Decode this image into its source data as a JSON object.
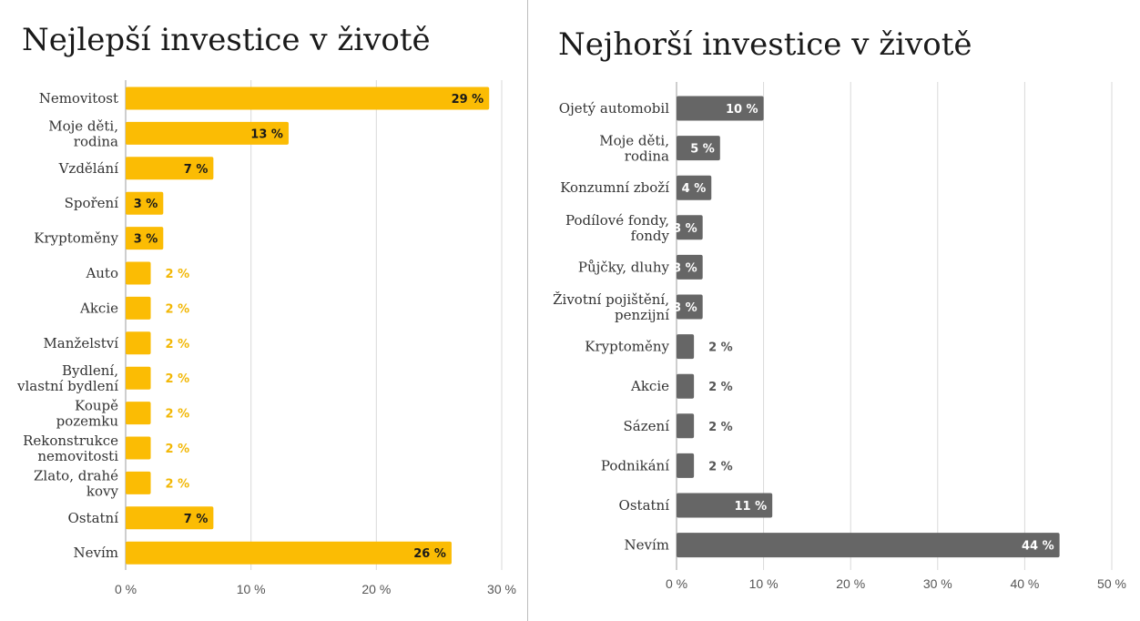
{
  "chart_data": [
    {
      "type": "bar",
      "orientation": "horizontal",
      "title": "Nejlepší investice v životě",
      "categories": [
        "Nemovitost",
        "Moje děti,\nrodina",
        "Vzdělání",
        "Spoření",
        "Kryptoměny",
        "Auto",
        "Akcie",
        "Manželství",
        "Bydlení,\nvlastní bydlení",
        "Koupě\npozemku",
        "Rekonstrukce\nnemovitosti",
        "Zlato, drahé\nkovy",
        "Ostatní",
        "Nevím"
      ],
      "values": [
        29,
        13,
        7,
        3,
        3,
        2,
        2,
        2,
        2,
        2,
        2,
        2,
        7,
        26
      ],
      "value_labels": [
        "29 %",
        "13 %",
        "7 %",
        "3 %",
        "3 %",
        "2 %",
        "2 %",
        "2 %",
        "2 %",
        "2 %",
        "2 %",
        "2 %",
        "7 %",
        "26 %"
      ],
      "xlim": [
        0,
        30
      ],
      "xticks": [
        "0 %",
        "10 %",
        "20 %",
        "30 %"
      ],
      "xlabel": "",
      "ylabel": "",
      "grid": true,
      "bar_color": "#fbbc04",
      "label_inside_color": "#1a1a1a",
      "label_outside_color": "#f2b705"
    },
    {
      "type": "bar",
      "orientation": "horizontal",
      "title": "Nejhorší investice v životě",
      "categories": [
        "Ojetý automobil",
        "Moje děti,\nrodina",
        "Konzumní zboží",
        "Podílové fondy,\nfondy",
        "Půjčky, dluhy",
        "Životní pojištění,\npenzijní",
        "Kryptoměny",
        "Akcie",
        "Sázení",
        "Podnikání",
        "Ostatní",
        "Nevím"
      ],
      "values": [
        10,
        5,
        4,
        3,
        3,
        3,
        2,
        2,
        2,
        2,
        11,
        44
      ],
      "value_labels": [
        "10 %",
        "5 %",
        "4 %",
        "3 %",
        "3 %",
        "3 %",
        "2 %",
        "2 %",
        "2 %",
        "2 %",
        "11 %",
        "44 %"
      ],
      "xlim": [
        0,
        50
      ],
      "xticks": [
        "0 %",
        "10 %",
        "20 %",
        "30 %",
        "40 %",
        "50 %"
      ],
      "xlabel": "",
      "ylabel": "",
      "grid": true,
      "bar_color": "#666666",
      "label_inside_color": "#ffffff",
      "label_outside_color": "#555555"
    }
  ]
}
